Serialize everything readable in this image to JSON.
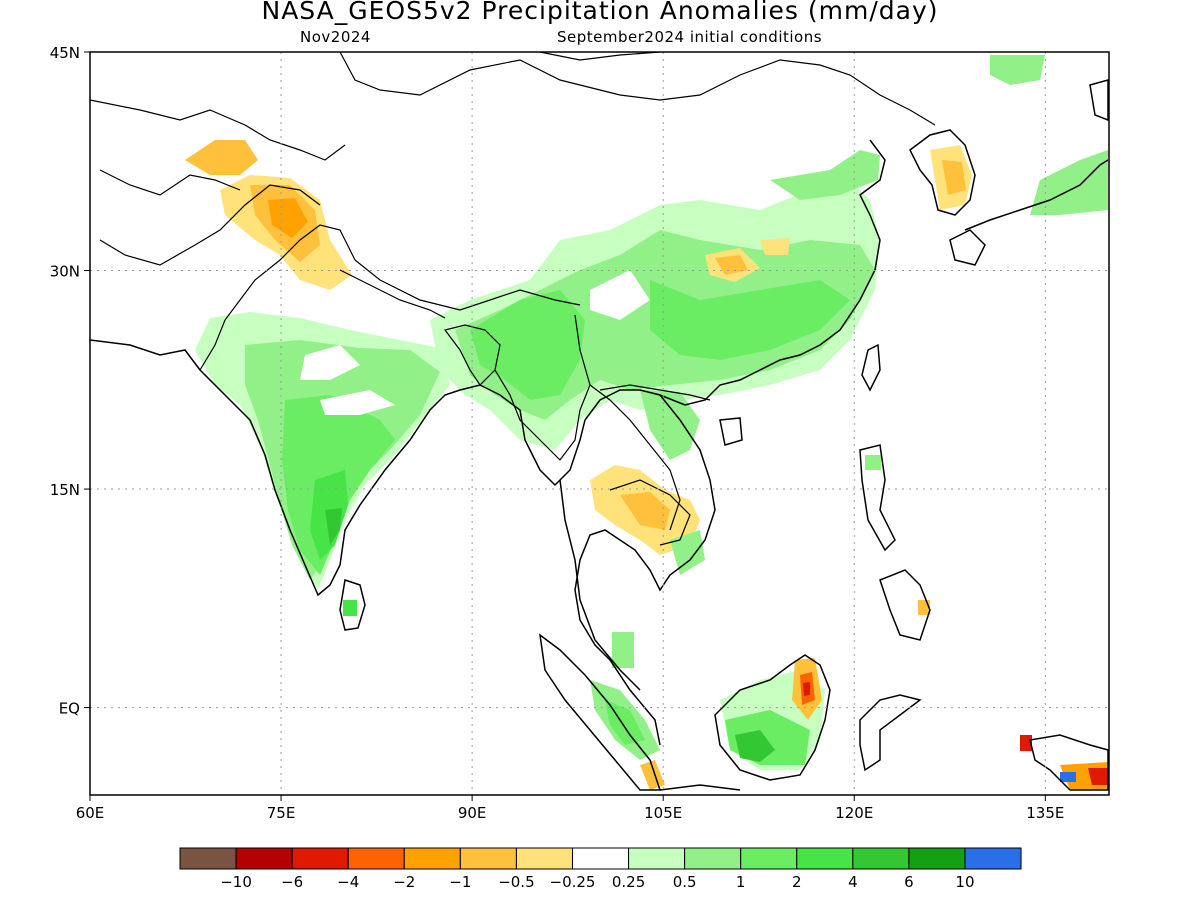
{
  "header": {
    "title": "NASA_GEOS5v2 Precipitation Anomalies (mm/day)",
    "left_subtitle": "Nov2024",
    "right_subtitle": "September2024 initial conditions"
  },
  "map": {
    "lon_range": [
      60,
      140
    ],
    "lat_range": [
      -6,
      45
    ],
    "lon_ticks": [
      "60E",
      "75E",
      "90E",
      "105E",
      "120E",
      "135E"
    ],
    "lat_ticks": [
      "45N",
      "30N",
      "15N",
      "EQ"
    ],
    "grid": "dotted"
  },
  "colorbar": {
    "colors": [
      "#7a5443",
      "#b40000",
      "#e01a00",
      "#ff6300",
      "#ffa200",
      "#ffc13b",
      "#ffe27a",
      "#ffffff",
      "#c7ffc0",
      "#92f089",
      "#6aec63",
      "#47e447",
      "#33c833",
      "#14a014",
      "#2a6ee8"
    ],
    "labels": [
      "−10",
      "−6",
      "−4",
      "−2",
      "−1",
      "−0.5",
      "−0.25",
      "0.25",
      "0.5",
      "1",
      "2",
      "4",
      "6",
      "10"
    ]
  }
}
